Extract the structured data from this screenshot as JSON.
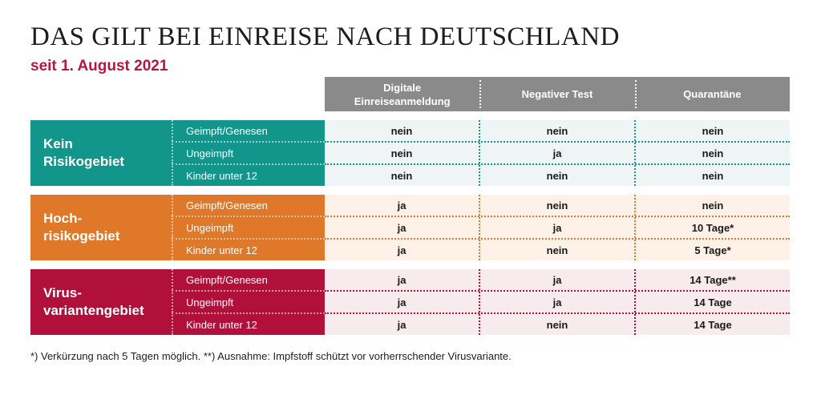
{
  "title": "DAS GILT BEI EINREISE NACH DEUTSCHLAND",
  "subtitle": "seit 1. August 2021",
  "columns": [
    "Digitale\nEinreiseanmeldung",
    "Negativer Test",
    "Quarantäne"
  ],
  "colors": {
    "kein": "#12958a",
    "hoch": "#e0782a",
    "virus": "#b0103a",
    "header": "#8a8a8a",
    "subtitle": "#b5173e"
  },
  "groups": [
    {
      "label": "Kein\nRisikogebiet",
      "rows": [
        {
          "label": "Geimpft/Genesen",
          "values": [
            "nein",
            "nein",
            "nein"
          ]
        },
        {
          "label": "Ungeimpft",
          "values": [
            "nein",
            "ja",
            "nein"
          ]
        },
        {
          "label": "Kinder unter 12",
          "values": [
            "nein",
            "nein",
            "nein"
          ]
        }
      ]
    },
    {
      "label": "Hoch-\nrisikogebiet",
      "rows": [
        {
          "label": "Geimpft/Genesen",
          "values": [
            "ja",
            "nein",
            "nein"
          ]
        },
        {
          "label": "Ungeimpft",
          "values": [
            "ja",
            "ja",
            "10 Tage*"
          ]
        },
        {
          "label": "Kinder unter 12",
          "values": [
            "ja",
            "nein",
            "5 Tage*"
          ]
        }
      ]
    },
    {
      "label": "Virus-\nvariantengebiet",
      "rows": [
        {
          "label": "Geimpft/Genesen",
          "values": [
            "ja",
            "ja",
            "14 Tage**"
          ]
        },
        {
          "label": "Ungeimpft",
          "values": [
            "ja",
            "ja",
            "14 Tage"
          ]
        },
        {
          "label": "Kinder unter 12",
          "values": [
            "ja",
            "nein",
            "14 Tage"
          ]
        }
      ]
    }
  ],
  "footnote": "*) Verkürzung nach 5 Tagen möglich. **) Ausnahme: Impfstoff schützt vor vorherrschender Virusvariante."
}
